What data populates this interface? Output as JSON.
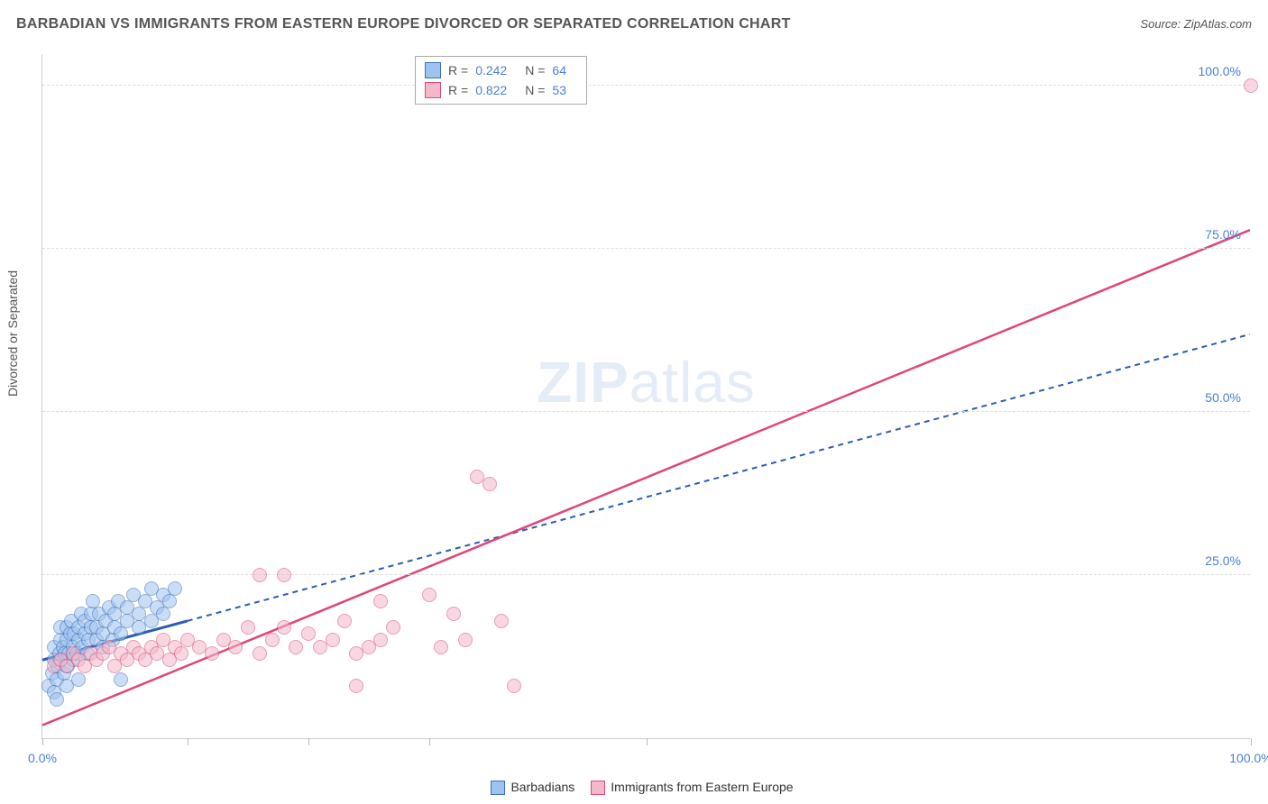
{
  "title": "BARBADIAN VS IMMIGRANTS FROM EASTERN EUROPE DIVORCED OR SEPARATED CORRELATION CHART",
  "source_label": "Source: ZipAtlas.com",
  "ylabel": "Divorced or Separated",
  "watermark_a": "ZIP",
  "watermark_b": "atlas",
  "chart": {
    "type": "scatter",
    "xlim": [
      0,
      100
    ],
    "ylim": [
      0,
      105
    ],
    "xticks": [
      0,
      12,
      22,
      32,
      50,
      100
    ],
    "xtick_labels": {
      "0": "0.0%",
      "100": "100.0%"
    },
    "yticks": [
      25,
      50,
      75,
      100
    ],
    "ytick_labels": {
      "25": "25.0%",
      "50": "50.0%",
      "75": "75.0%",
      "100": "100.0%"
    },
    "grid_color": "#dddddd",
    "axis_color": "#cccccc",
    "marker_radius": 8,
    "marker_opacity": 0.55,
    "series": [
      {
        "name": "Barbadians",
        "color_fill": "#9ec3f0",
        "color_stroke": "#3b6fb8",
        "r": 0.242,
        "n": 64,
        "trend": {
          "x0": 0,
          "y0": 12,
          "x1": 100,
          "y1": 62,
          "stroke": "#2a5db0",
          "dash": "6 5",
          "width": 2,
          "solid_until_x": 12
        },
        "points": [
          [
            0.5,
            8
          ],
          [
            0.8,
            10
          ],
          [
            1,
            12
          ],
          [
            1,
            14
          ],
          [
            1.2,
            9
          ],
          [
            1.3,
            11
          ],
          [
            1.4,
            13
          ],
          [
            1.5,
            15
          ],
          [
            1.5,
            17
          ],
          [
            1.6,
            12
          ],
          [
            1.7,
            14
          ],
          [
            1.8,
            10
          ],
          [
            1.9,
            13
          ],
          [
            2,
            15
          ],
          [
            2,
            17
          ],
          [
            2.1,
            11
          ],
          [
            2.2,
            13
          ],
          [
            2.3,
            16
          ],
          [
            2.4,
            18
          ],
          [
            2.5,
            12
          ],
          [
            2.5,
            14
          ],
          [
            2.6,
            16
          ],
          [
            2.8,
            13
          ],
          [
            3,
            15
          ],
          [
            3,
            17
          ],
          [
            3.2,
            19
          ],
          [
            3.3,
            14
          ],
          [
            3.5,
            16
          ],
          [
            3.5,
            18
          ],
          [
            3.7,
            13
          ],
          [
            3.8,
            15
          ],
          [
            4,
            17
          ],
          [
            4,
            19
          ],
          [
            4.2,
            21
          ],
          [
            4.5,
            15
          ],
          [
            4.5,
            17
          ],
          [
            4.7,
            19
          ],
          [
            5,
            14
          ],
          [
            5,
            16
          ],
          [
            5.2,
            18
          ],
          [
            5.5,
            20
          ],
          [
            5.8,
            15
          ],
          [
            6,
            17
          ],
          [
            6,
            19
          ],
          [
            6.3,
            21
          ],
          [
            6.5,
            16
          ],
          [
            7,
            18
          ],
          [
            7,
            20
          ],
          [
            7.5,
            22
          ],
          [
            8,
            17
          ],
          [
            8,
            19
          ],
          [
            8.5,
            21
          ],
          [
            9,
            23
          ],
          [
            9,
            18
          ],
          [
            9.5,
            20
          ],
          [
            10,
            22
          ],
          [
            10,
            19
          ],
          [
            10.5,
            21
          ],
          [
            11,
            23
          ],
          [
            1,
            7
          ],
          [
            2,
            8
          ],
          [
            3,
            9
          ],
          [
            6.5,
            9
          ],
          [
            1.2,
            6
          ]
        ]
      },
      {
        "name": "Immigrants from Eastern Europe",
        "color_fill": "#f4b8c9",
        "color_stroke": "#d84a7a",
        "r": 0.822,
        "n": 53,
        "trend": {
          "x0": 0,
          "y0": 2,
          "x1": 100,
          "y1": 78,
          "stroke": "#e0457a",
          "dash": "",
          "width": 2.5
        },
        "points": [
          [
            1,
            11
          ],
          [
            1.5,
            12
          ],
          [
            2,
            11
          ],
          [
            2.5,
            13
          ],
          [
            3,
            12
          ],
          [
            3.5,
            11
          ],
          [
            4,
            13
          ],
          [
            4.5,
            12
          ],
          [
            5,
            13
          ],
          [
            5.5,
            14
          ],
          [
            6,
            11
          ],
          [
            6.5,
            13
          ],
          [
            7,
            12
          ],
          [
            7.5,
            14
          ],
          [
            8,
            13
          ],
          [
            8.5,
            12
          ],
          [
            9,
            14
          ],
          [
            9.5,
            13
          ],
          [
            10,
            15
          ],
          [
            10.5,
            12
          ],
          [
            11,
            14
          ],
          [
            11.5,
            13
          ],
          [
            12,
            15
          ],
          [
            13,
            14
          ],
          [
            14,
            13
          ],
          [
            15,
            15
          ],
          [
            16,
            14
          ],
          [
            17,
            17
          ],
          [
            18,
            13
          ],
          [
            19,
            15
          ],
          [
            20,
            17
          ],
          [
            20,
            25
          ],
          [
            21,
            14
          ],
          [
            22,
            16
          ],
          [
            23,
            14
          ],
          [
            24,
            15
          ],
          [
            25,
            18
          ],
          [
            26,
            13
          ],
          [
            27,
            14
          ],
          [
            28,
            21
          ],
          [
            29,
            17
          ],
          [
            32,
            22
          ],
          [
            33,
            14
          ],
          [
            34,
            19
          ],
          [
            35,
            15
          ],
          [
            36,
            40
          ],
          [
            37,
            39
          ],
          [
            38,
            18
          ],
          [
            39,
            8
          ],
          [
            26,
            8
          ],
          [
            18,
            25
          ],
          [
            100,
            100
          ],
          [
            28,
            15
          ]
        ]
      }
    ]
  },
  "legend_bottom": [
    {
      "label": "Barbadians",
      "fill": "#9ec3f0",
      "stroke": "#3b6fb8"
    },
    {
      "label": "Immigrants from Eastern Europe",
      "fill": "#f4b8c9",
      "stroke": "#d84a7a"
    }
  ]
}
